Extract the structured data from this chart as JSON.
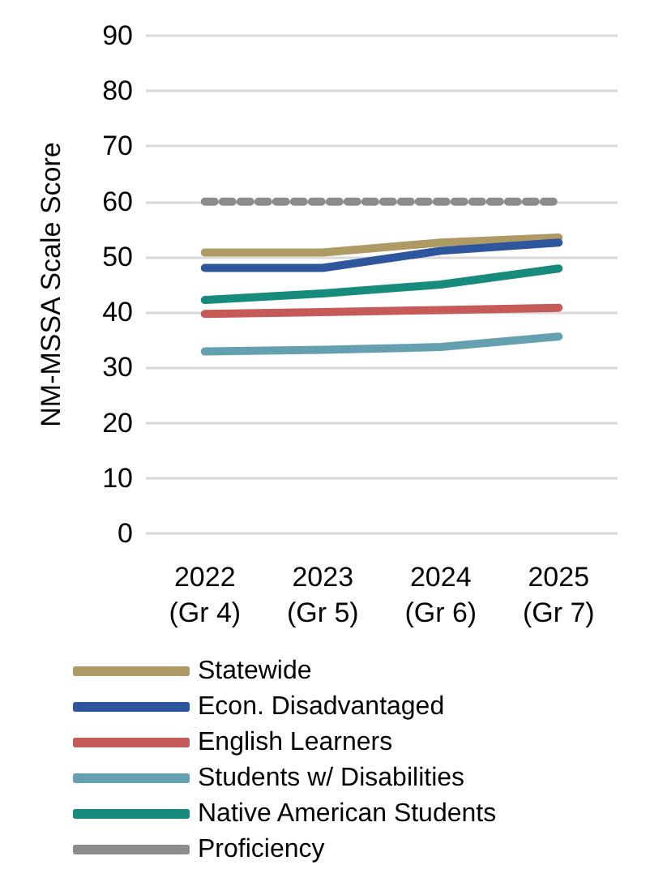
{
  "chart_data": {
    "type": "line",
    "ylabel": "NM-MSSA Scale Score",
    "categories": [
      "2022\n(Gr 4)",
      "2023\n(Gr 5)",
      "2024\n(Gr 6)",
      "2025\n(Gr 7)"
    ],
    "ylim": [
      0,
      90
    ],
    "yticks": [
      0,
      10,
      20,
      30,
      40,
      50,
      60,
      70,
      80,
      90
    ],
    "grid": "y",
    "legend": "bottom",
    "marker": "none",
    "series": [
      {
        "name": "Statewide",
        "color": "#ae9a64",
        "values": [
          50.8,
          50.8,
          52.6,
          53.5
        ]
      },
      {
        "name": "Econ. Disadvantaged",
        "color": "#2e569c",
        "values": [
          48.0,
          48.0,
          51.1,
          52.6
        ]
      },
      {
        "name": "English Learners",
        "color": "#c55a58",
        "values": [
          39.7,
          40.0,
          40.4,
          40.8
        ]
      },
      {
        "name": "Students w/ Disabilities",
        "color": "#65a0b0",
        "values": [
          32.9,
          33.2,
          33.7,
          35.6
        ]
      },
      {
        "name": "Native American Students",
        "color": "#178c7c",
        "values": [
          42.2,
          43.4,
          45.0,
          47.9
        ]
      },
      {
        "name": "Proficiency",
        "color": "#8c8c8c",
        "values": [
          60,
          60,
          60,
          60
        ],
        "line_style": "dashed"
      }
    ]
  }
}
